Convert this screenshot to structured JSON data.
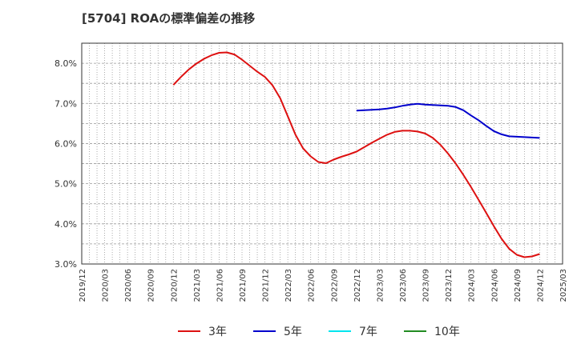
{
  "chart_data": {
    "type": "line",
    "title": "[5704]  ROAの標準偏差の推移",
    "xlabel": "",
    "ylabel": "",
    "ylim": [
      3.0,
      8.5
    ],
    "y_ticks": [
      3.0,
      4.0,
      5.0,
      6.0,
      7.0,
      8.0
    ],
    "y_tick_labels": [
      "3.0%",
      "4.0%",
      "5.0%",
      "6.0%",
      "7.0%",
      "8.0%"
    ],
    "x_tick_labels": [
      "2019/12",
      "2020/03",
      "2020/06",
      "2020/09",
      "2020/12",
      "2021/03",
      "2021/06",
      "2021/09",
      "2021/12",
      "2022/03",
      "2022/06",
      "2022/09",
      "2022/12",
      "2023/03",
      "2023/06",
      "2023/09",
      "2023/12",
      "2024/03",
      "2024/06",
      "2024/09",
      "2024/12",
      "2025/03"
    ],
    "grid": true,
    "legend_position": "bottom",
    "series": [
      {
        "name": "3年",
        "color": "#dd1111",
        "x": [
          "2020/12",
          "2021/01",
          "2021/02",
          "2021/03",
          "2021/04",
          "2021/05",
          "2021/06",
          "2021/07",
          "2021/08",
          "2021/09",
          "2021/10",
          "2021/11",
          "2021/12",
          "2022/01",
          "2022/02",
          "2022/03",
          "2022/04",
          "2022/05",
          "2022/06",
          "2022/07",
          "2022/08",
          "2022/09",
          "2022/10",
          "2022/11",
          "2022/12",
          "2023/01",
          "2023/02",
          "2023/03",
          "2023/04",
          "2023/05",
          "2023/06",
          "2023/07",
          "2023/08",
          "2023/09",
          "2023/10",
          "2023/11",
          "2023/12",
          "2024/01",
          "2024/02",
          "2024/03",
          "2024/04",
          "2024/05",
          "2024/06",
          "2024/07",
          "2024/08",
          "2024/09",
          "2024/10",
          "2024/11",
          "2024/12"
        ],
        "values": [
          7.46,
          7.66,
          7.84,
          7.99,
          8.11,
          8.2,
          8.26,
          8.27,
          8.22,
          8.09,
          7.94,
          7.79,
          7.66,
          7.45,
          7.13,
          6.68,
          6.22,
          5.88,
          5.68,
          5.54,
          5.51,
          5.6,
          5.67,
          5.73,
          5.8,
          5.91,
          6.02,
          6.12,
          6.22,
          6.29,
          6.32,
          6.32,
          6.3,
          6.25,
          6.14,
          5.97,
          5.75,
          5.5,
          5.22,
          4.92,
          4.6,
          4.27,
          3.94,
          3.63,
          3.38,
          3.23,
          3.17,
          3.19,
          3.25
        ]
      },
      {
        "name": "5年",
        "color": "#0000cc",
        "x": [
          "2022/12",
          "2023/01",
          "2023/02",
          "2023/03",
          "2023/04",
          "2023/05",
          "2023/06",
          "2023/07",
          "2023/08",
          "2023/09",
          "2023/10",
          "2023/11",
          "2023/12",
          "2024/01",
          "2024/02",
          "2024/03",
          "2024/04",
          "2024/05",
          "2024/06",
          "2024/07",
          "2024/08",
          "2024/09",
          "2024/10",
          "2024/11",
          "2024/12"
        ],
        "values": [
          6.82,
          6.83,
          6.84,
          6.85,
          6.87,
          6.9,
          6.94,
          6.97,
          6.99,
          6.97,
          6.96,
          6.95,
          6.94,
          6.91,
          6.83,
          6.7,
          6.58,
          6.44,
          6.31,
          6.23,
          6.18,
          6.17,
          6.16,
          6.15,
          6.14
        ]
      },
      {
        "name": "7年",
        "color": "#00e5ee",
        "x": [],
        "values": []
      },
      {
        "name": "10年",
        "color": "#228b22",
        "x": [],
        "values": []
      }
    ]
  }
}
